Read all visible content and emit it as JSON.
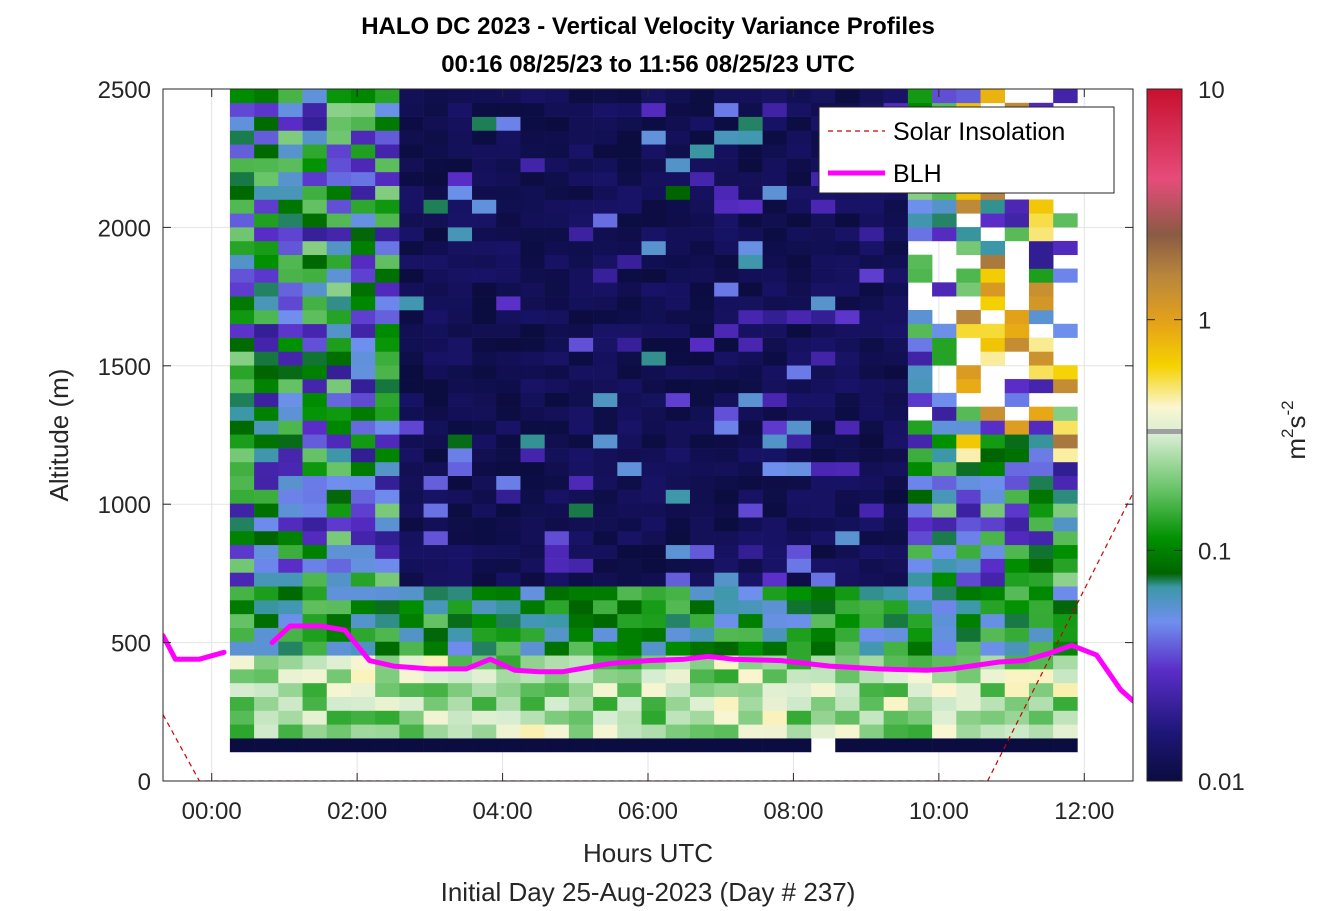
{
  "chart_data": {
    "type": "heatmap",
    "title": "HALO DC 2023 - Vertical Velocity Variance Profiles",
    "subtitle": "00:16 08/25/23 to 11:56 08/25/23  UTC",
    "xlabel": "Hours UTC",
    "xlabel2": "Initial Day 25-Aug-2023 (Day # 237)",
    "ylabel": "Altitude (m)",
    "xlim": [
      -0.67,
      12.67
    ],
    "ylim": [
      0,
      2500
    ],
    "x_ticks": [
      0,
      2,
      4,
      6,
      8,
      10,
      12
    ],
    "x_tick_labels": [
      "00:00",
      "02:00",
      "04:00",
      "06:00",
      "08:00",
      "10:00",
      "12:00"
    ],
    "y_ticks": [
      0,
      500,
      1000,
      1500,
      2000,
      2500
    ],
    "y_tick_labels": [
      "0",
      "500",
      "1000",
      "1500",
      "2000",
      "2500"
    ],
    "grid": true,
    "colorbar": {
      "scale": "log",
      "min": 0.01,
      "max": 10,
      "tick_labels": [
        "0.01",
        "0.1",
        "1",
        "10"
      ],
      "label_base": "m",
      "label_exp1": "2",
      "label_mid": "s",
      "label_exp2": "-2"
    },
    "legend": {
      "placement": "top-right",
      "entries": [
        "Solar Insolation",
        "BLH"
      ]
    },
    "heatmap_extent": {
      "x_start_hours": 0.25,
      "x_end_hours": 11.92,
      "y_start_m": 105,
      "y_end_m": 2500,
      "column_width_hours": 0.333,
      "row_height_m": 50
    },
    "variance_summary": [
      {
        "altitude_m": "105-150",
        "value": 0.01
      },
      {
        "altitude_m": "150-450",
        "value": 0.15
      },
      {
        "altitude_m": "450-700",
        "value": 0.05
      },
      {
        "altitude_m": "700-2500",
        "value": 0.01
      }
    ],
    "blh_series": {
      "name": "BLH",
      "color": "#FF00FF",
      "x": [
        -0.67,
        -0.5,
        -0.17,
        0.17,
        0.5,
        0.83,
        1.08,
        1.5,
        1.83,
        2.17,
        2.5,
        3.0,
        3.5,
        3.83,
        4.17,
        4.5,
        4.83,
        5.5,
        6.0,
        6.5,
        6.83,
        7.17,
        7.83,
        8.5,
        9.17,
        9.83,
        10.17,
        10.83,
        11.17,
        11.5,
        11.83,
        12.17,
        12.5,
        12.67
      ],
      "y": [
        525,
        440,
        440,
        465,
        null,
        500,
        560,
        560,
        545,
        435,
        415,
        405,
        405,
        440,
        400,
        395,
        395,
        425,
        435,
        440,
        450,
        440,
        435,
        415,
        405,
        400,
        405,
        430,
        435,
        460,
        490,
        455,
        330,
        290
      ]
    },
    "solar_series": {
      "name": "Solar Insolation",
      "color": "#CC0000",
      "x": [
        -0.67,
        -0.17,
        10.67,
        12.67
      ],
      "y": [
        240,
        0,
        0,
        1040
      ]
    },
    "colors": {
      "background_missing": "#FFFFFF",
      "colormap_low": "#0B0C3F",
      "colormap_mid": "#009100",
      "colormap_high": "#C8102E"
    }
  }
}
